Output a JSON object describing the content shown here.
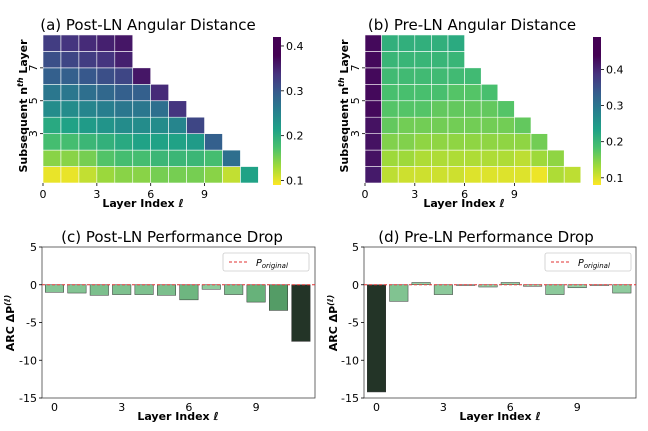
{
  "chart_data": [
    {
      "type": "heatmap",
      "title": "(a) Post-LN Angular Distance",
      "xlabel": "Layer Index ℓ",
      "ylabel": "Subsequent n",
      "ylabel_sup": "th",
      "ylabel_tail": " Layer",
      "xticks": [
        "0",
        "3",
        "6",
        "9"
      ],
      "yticks": [
        "3",
        "5",
        "7"
      ],
      "colorbar_ticks": [
        "0.4",
        "0.3",
        "0.2",
        "0.1"
      ],
      "colorbar_range": [
        0.09,
        0.42
      ],
      "rows_n_1_to_9": [
        [
          0.1,
          0.1,
          0.12,
          0.14,
          0.15,
          0.15,
          0.16,
          0.16,
          0.16,
          0.15,
          0.12,
          0.23
        ],
        [
          0.15,
          0.15,
          0.16,
          0.18,
          0.19,
          0.19,
          0.2,
          0.2,
          0.2,
          0.19,
          0.3
        ],
        [
          0.19,
          0.19,
          0.2,
          0.21,
          0.22,
          0.23,
          0.23,
          0.23,
          0.24,
          0.32
        ],
        [
          0.22,
          0.23,
          0.24,
          0.25,
          0.26,
          0.26,
          0.26,
          0.27,
          0.35
        ],
        [
          0.26,
          0.26,
          0.27,
          0.28,
          0.29,
          0.29,
          0.3,
          0.37
        ],
        [
          0.29,
          0.29,
          0.3,
          0.31,
          0.32,
          0.32,
          0.38
        ],
        [
          0.32,
          0.32,
          0.33,
          0.34,
          0.35,
          0.4
        ],
        [
          0.34,
          0.35,
          0.36,
          0.37,
          0.39
        ],
        [
          0.36,
          0.37,
          0.38,
          0.39,
          0.4
        ]
      ]
    },
    {
      "type": "heatmap",
      "title": "(b) Pre-LN Angular Distance",
      "xlabel": "Layer Index ℓ",
      "ylabel": "Subsequent n",
      "ylabel_sup": "th",
      "ylabel_tail": " Layer",
      "xticks": [
        "0",
        "3",
        "6",
        "9"
      ],
      "yticks": [
        "3",
        "5",
        "7"
      ],
      "colorbar_ticks": [
        "0.4",
        "0.3",
        "0.2",
        "0.1"
      ],
      "colorbar_range": [
        0.08,
        0.49
      ],
      "rows_n_1_to_9": [
        [
          0.46,
          0.12,
          0.11,
          0.11,
          0.11,
          0.11,
          0.1,
          0.1,
          0.1,
          0.1,
          0.09,
          0.13,
          0.12
        ],
        [
          0.47,
          0.14,
          0.14,
          0.13,
          0.13,
          0.13,
          0.13,
          0.13,
          0.13,
          0.12,
          0.14,
          0.15
        ],
        [
          0.47,
          0.16,
          0.16,
          0.15,
          0.15,
          0.15,
          0.15,
          0.15,
          0.15,
          0.15,
          0.17
        ],
        [
          0.47,
          0.18,
          0.17,
          0.17,
          0.17,
          0.17,
          0.17,
          0.17,
          0.17,
          0.18
        ],
        [
          0.48,
          0.19,
          0.19,
          0.19,
          0.18,
          0.18,
          0.18,
          0.18,
          0.19
        ],
        [
          0.48,
          0.2,
          0.2,
          0.2,
          0.2,
          0.19,
          0.19,
          0.2
        ],
        [
          0.48,
          0.21,
          0.21,
          0.21,
          0.21,
          0.21,
          0.21
        ],
        [
          0.48,
          0.22,
          0.22,
          0.22,
          0.22,
          0.22
        ],
        [
          0.48,
          0.23,
          0.23,
          0.23,
          0.23,
          0.24
        ]
      ]
    },
    {
      "type": "bar",
      "title": "(c) Post-LN Performance Drop",
      "xlabel": "Layer Index ℓ",
      "ylabel": "ARC ΔP",
      "ylabel_sup": "(ℓ)",
      "x": [
        0,
        1,
        2,
        3,
        4,
        5,
        6,
        7,
        8,
        9,
        10,
        11
      ],
      "values": [
        -1.0,
        -1.1,
        -1.4,
        -1.3,
        -1.3,
        -1.4,
        -2.0,
        -0.6,
        -1.3,
        -2.3,
        -3.4,
        -7.5
      ],
      "xticks": [
        "0",
        "3",
        "6",
        "9"
      ],
      "yticks": [
        "5",
        "0",
        "-5",
        "-10",
        "-15"
      ],
      "ylim": [
        -15,
        5
      ],
      "legend": "P",
      "legend_sub": "original",
      "reference_line_y": 0
    },
    {
      "type": "bar",
      "title": "(d) Pre-LN Performance Drop",
      "xlabel": "Layer Index ℓ",
      "ylabel": "ARC ΔP",
      "ylabel_sup": "(ℓ)",
      "x": [
        0,
        1,
        2,
        3,
        4,
        5,
        6,
        7,
        8,
        9,
        10,
        11
      ],
      "values": [
        -14.2,
        -2.2,
        0.3,
        -1.3,
        -0.1,
        -0.3,
        0.3,
        -0.2,
        -1.3,
        -0.4,
        -0.1,
        -1.1
      ],
      "xticks": [
        "0",
        "3",
        "6",
        "9"
      ],
      "yticks": [
        "5",
        "0",
        "-5",
        "-10",
        "-15"
      ],
      "ylim": [
        -15,
        5
      ],
      "legend": "P",
      "legend_sub": "original",
      "reference_line_y": 0
    }
  ]
}
